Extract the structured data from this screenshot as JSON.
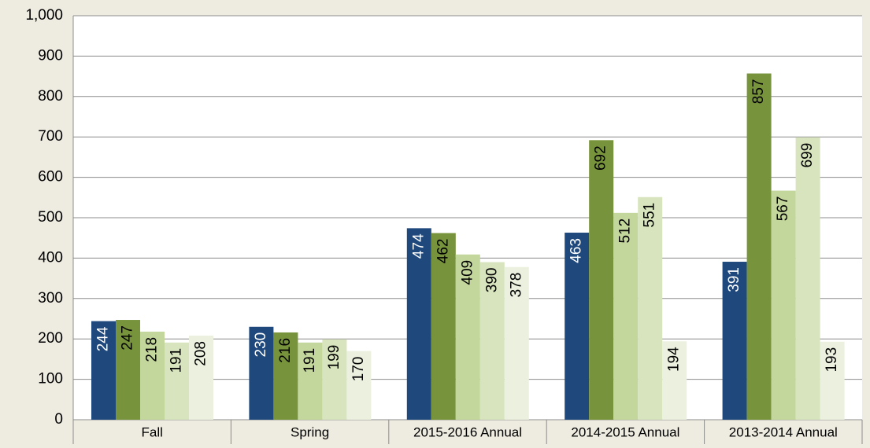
{
  "chart_data": {
    "type": "bar",
    "categories": [
      "Fall",
      "Spring",
      "2015-2016 Annual",
      "2014-2015 Annual",
      "2013-2014 Annual"
    ],
    "series": [
      {
        "color": "#1f497d",
        "values": [
          244,
          230,
          474,
          463,
          391
        ]
      },
      {
        "color": "#77933c",
        "values": [
          247,
          216,
          462,
          692,
          857
        ]
      },
      {
        "color": "#c3d69b",
        "values": [
          218,
          191,
          409,
          512,
          567
        ]
      },
      {
        "color": "#d7e4bd",
        "values": [
          191,
          199,
          390,
          551,
          699
        ]
      },
      {
        "color": "#ebf1de",
        "values": [
          208,
          170,
          378,
          194,
          193
        ]
      }
    ],
    "ylim": [
      0,
      1000
    ],
    "yticks": [
      0,
      100,
      200,
      300,
      400,
      500,
      600,
      700,
      800,
      900,
      {
        "value": 1000,
        "label": "1,000"
      }
    ],
    "grid": true
  }
}
